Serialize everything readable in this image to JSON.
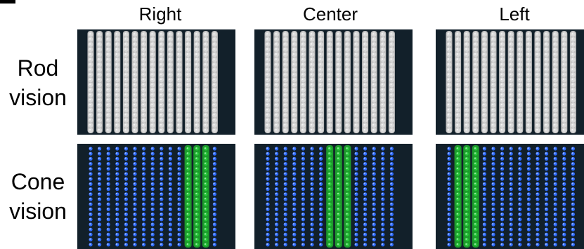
{
  "title_fragment": "...",
  "columns": [
    "Right",
    "Center",
    "Left"
  ],
  "rows": [
    {
      "label_line1": "Rod",
      "label_line2": "vision",
      "type": "rod"
    },
    {
      "label_line1": "Cone",
      "label_line2": "vision",
      "type": "cone"
    }
  ],
  "panels": {
    "rod": {
      "dot_color": "#d9d9d9",
      "columns_count": 15
    },
    "cone": [
      {
        "column": "Right",
        "green_columns": [
          11,
          12,
          13
        ]
      },
      {
        "column": "Center",
        "green_columns": [
          7,
          8,
          9
        ]
      },
      {
        "column": "Left",
        "green_columns": [
          1,
          2,
          3
        ]
      }
    ]
  },
  "colors": {
    "background": "#12202a",
    "rod": "#d9d9d9",
    "blue": "#2f6bff",
    "green": "#27c93a"
  }
}
